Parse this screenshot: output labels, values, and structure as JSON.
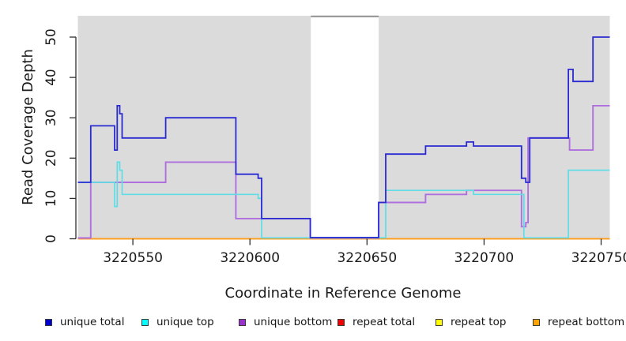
{
  "chart_data": {
    "type": "line",
    "subtype": "step-coverage-plot",
    "title": "",
    "xlabel": "Coordinate in Reference Genome",
    "ylabel": "Read Coverage Depth",
    "xlim": [
      3220526.5,
      3220753.7
    ],
    "ylim": [
      0,
      55
    ],
    "grid": false,
    "legend_position": "bottom-horizontal",
    "panel_bg": "#dbdbdb",
    "gap_top_border_color": "#8f8f8f",
    "axis_color": "#2e2e2e",
    "x_ticks": [
      3220550,
      3220600,
      3220650,
      3220700,
      3220750
    ],
    "x_tick_labels": [
      "3220550",
      "3220600",
      "3220650",
      "3220700",
      "3220750"
    ],
    "y_ticks": [
      0,
      10,
      20,
      30,
      40,
      50
    ],
    "y_tick_labels": [
      "0",
      "10",
      "20",
      "30",
      "40",
      "50"
    ],
    "gap_region": {
      "start": 3220626,
      "end": 3220655
    },
    "series": [
      {
        "name": "unique total",
        "line_color": "#2a2ad2",
        "steps": [
          [
            3220526.5,
            14
          ],
          [
            3220532,
            28
          ],
          [
            3220542.2,
            22
          ],
          [
            3220543.3,
            33
          ],
          [
            3220544.4,
            31
          ],
          [
            3220545.4,
            25
          ],
          [
            3220564,
            30
          ],
          [
            3220594,
            16
          ],
          [
            3220603.5,
            15
          ],
          [
            3220605,
            5
          ],
          [
            3220625.8,
            0
          ],
          [
            3220655,
            9
          ],
          [
            3220658,
            21
          ],
          [
            3220675,
            23
          ],
          [
            3220692.5,
            24
          ],
          [
            3220695.5,
            23
          ],
          [
            3220716,
            15
          ],
          [
            3220717.8,
            14
          ],
          [
            3220719.5,
            25
          ],
          [
            3220736,
            42
          ],
          [
            3220738,
            39
          ],
          [
            3220746.5,
            50
          ]
        ]
      },
      {
        "name": "unique top",
        "line_color": "#5fdde6",
        "steps": [
          [
            3220526.5,
            14
          ],
          [
            3220542.2,
            8
          ],
          [
            3220543.3,
            19
          ],
          [
            3220544.4,
            17
          ],
          [
            3220545.4,
            11
          ],
          [
            3220603.5,
            10
          ],
          [
            3220605,
            0
          ],
          [
            3220658,
            12
          ],
          [
            3220695.5,
            11
          ],
          [
            3220717,
            0
          ],
          [
            3220736,
            17
          ]
        ]
      },
      {
        "name": "unique bottom",
        "line_color": "#b06fdf",
        "steps": [
          [
            3220526.5,
            0
          ],
          [
            3220532,
            14
          ],
          [
            3220564,
            19
          ],
          [
            3220594,
            5
          ],
          [
            3220625.8,
            0
          ],
          [
            3220655,
            9
          ],
          [
            3220675,
            11
          ],
          [
            3220692.5,
            12
          ],
          [
            3220716,
            3
          ],
          [
            3220717.8,
            4
          ],
          [
            3220718.8,
            25
          ],
          [
            3220736.5,
            22
          ],
          [
            3220746.5,
            33
          ]
        ]
      },
      {
        "name": "repeat total",
        "line_color": "#e02020",
        "steps": [
          [
            3220526.5,
            0
          ]
        ]
      },
      {
        "name": "repeat top",
        "line_color": "#f5e626",
        "steps": [
          [
            3220526.5,
            0
          ]
        ]
      },
      {
        "name": "repeat bottom",
        "line_color": "#ff9d1c",
        "steps": [
          [
            3220526.5,
            0
          ]
        ]
      }
    ],
    "legend": {
      "items": [
        {
          "label": "unique total",
          "color": "#0000cc"
        },
        {
          "label": "unique top",
          "color": "#00ffff"
        },
        {
          "label": "unique bottom",
          "color": "#9932cc"
        },
        {
          "label": "repeat total",
          "color": "#ee0000"
        },
        {
          "label": "repeat top",
          "color": "#ffff00"
        },
        {
          "label": "repeat bottom",
          "color": "#ffa300"
        }
      ]
    }
  }
}
